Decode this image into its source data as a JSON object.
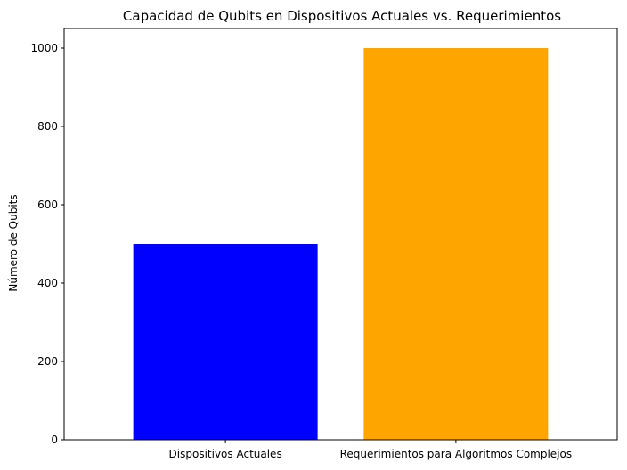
{
  "chart_data": {
    "type": "bar",
    "title": "Capacidad de Qubits en Dispositivos Actuales vs. Requerimientos",
    "xlabel": "",
    "ylabel": "Número de Qubits",
    "categories": [
      "Dispositivos Actuales",
      "Requerimientos para Algoritmos Complejos"
    ],
    "values": [
      500,
      1000
    ],
    "colors": [
      "#0000ff",
      "#ffa500"
    ],
    "ylim": [
      0,
      1050
    ],
    "yticks": [
      0,
      200,
      400,
      600,
      800,
      1000
    ],
    "grid": false,
    "legend": false
  }
}
